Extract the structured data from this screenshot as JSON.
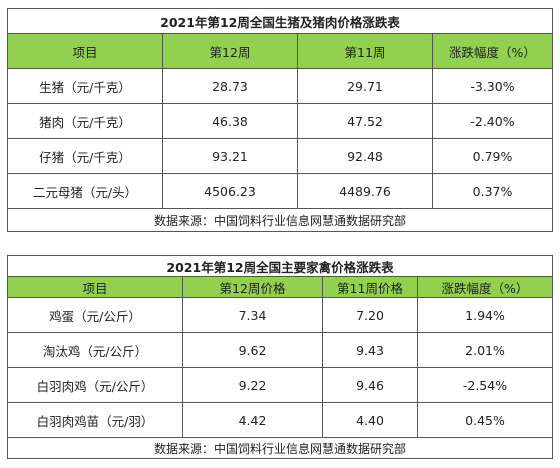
{
  "table1": {
    "title": "2021年第12周全国生猪及猪肉价格涨跌表",
    "headers": [
      "项目",
      "第12周",
      "第11周",
      "涨跌幅度（%）"
    ],
    "rows": [
      [
        "生猪（元/千克）",
        "28.73",
        "29.71",
        "-3.30%"
      ],
      [
        "猪肉（元/千克）",
        "46.38",
        "47.52",
        "-2.40%"
      ],
      [
        "仔猪（元/千克）",
        "93.21",
        "92.48",
        "0.79%"
      ],
      [
        "二元母猪（元/头）",
        "4506.23",
        "4489.76",
        "0.37%"
      ]
    ],
    "source": "数据来源：中国饲料行业信息网慧通数据研究部"
  },
  "table2": {
    "title": "2021年第12周全国主要家禽价格涨跌表",
    "headers": [
      "项目",
      "第12周价格",
      "第11周价格",
      "涨跌幅度（%）"
    ],
    "rows": [
      [
        "鸡蛋（元/公斤）",
        "7.34",
        "7.20",
        "1.94%"
      ],
      [
        "淘汰鸡（元/公斤）",
        "9.62",
        "9.43",
        "2.01%"
      ],
      [
        "白羽肉鸡（元/公斤）",
        "9.22",
        "9.46",
        "-2.54%"
      ],
      [
        "白羽肉鸡苗（元/羽）",
        "4.42",
        "4.40",
        "0.45%"
      ]
    ],
    "source": "数据来源：中国饲料行业信息网慧通数据研究部"
  },
  "colors": {
    "header_bg": "#92d050",
    "border": "#555555"
  }
}
